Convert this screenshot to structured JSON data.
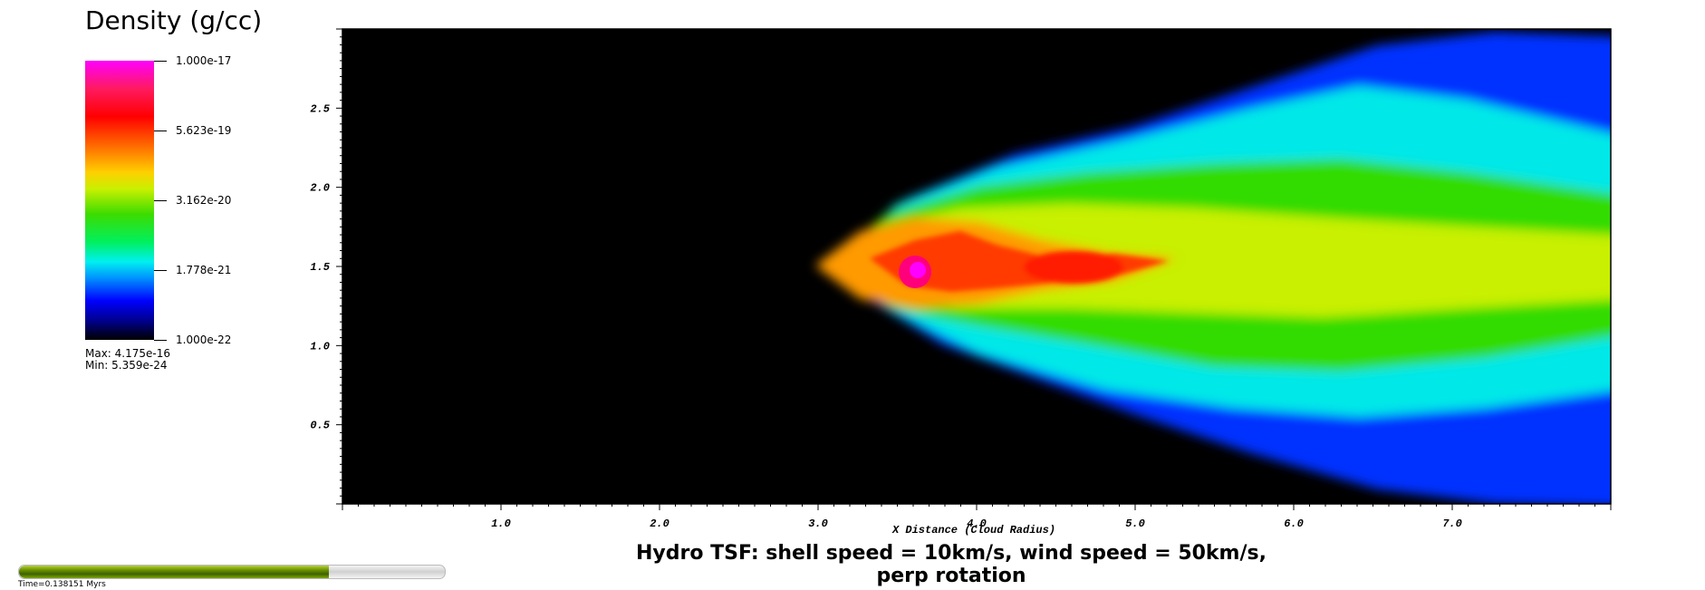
{
  "chart_data": {
    "type": "heatmap",
    "title": "Hydro TSF: shell speed = 10km/s, wind speed = 50km/s, perp rotation",
    "xlabel": "X Distance (Cloud Radius)",
    "ylabel": "",
    "xlim": [
      0,
      8.0
    ],
    "ylim": [
      0,
      3.0
    ],
    "x_ticks": [
      "1.0",
      "2.0",
      "3.0",
      "4.0",
      "5.0",
      "6.0",
      "7.0"
    ],
    "x_tick_values": [
      1.0,
      2.0,
      3.0,
      4.0,
      5.0,
      6.0,
      7.0
    ],
    "y_ticks": [
      "0.5",
      "1.0",
      "1.5",
      "2.0",
      "2.5"
    ],
    "y_tick_values": [
      0.5,
      1.0,
      1.5,
      2.0,
      2.5
    ],
    "background_color": "#000000",
    "colorbar": {
      "title": "Density (g/cc)",
      "scale": "log",
      "labels": [
        "1.000e-17",
        "5.623e-19",
        "3.162e-20",
        "1.778e-21",
        "1.000e-22"
      ],
      "values": [
        1e-17,
        5.623e-19,
        3.162e-20,
        1.778e-21,
        1e-22
      ],
      "max_label": "Max:  4.175e-16",
      "min_label": "Min:  5.359e-24",
      "colors": [
        "#ff00ff",
        "#ff0000",
        "#ffd000",
        "#3cdc00",
        "#00f0f0",
        "#0000ff",
        "#000000"
      ]
    },
    "features": {
      "cloud_core_center": [
        3.65,
        1.5
      ],
      "dense_tail_peak": [
        4.7,
        1.5
      ]
    }
  },
  "time_slider": {
    "label": "Time=0.138151 Myrs",
    "progress": 0.728,
    "fill_color": "#6f9800"
  }
}
